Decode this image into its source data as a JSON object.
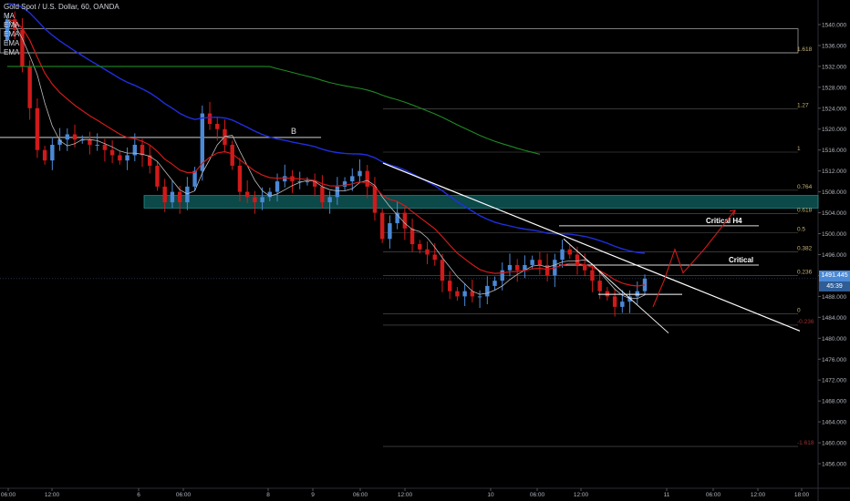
{
  "legend": {
    "symbol": "Gold Spot / U.S. Dollar, 60, OANDA",
    "indicators": [
      "MA",
      "EMA",
      "EMA",
      "EMA",
      "EMA"
    ]
  },
  "current_price": {
    "value": "1491.445",
    "countdown": "45:39",
    "color": "#4b89d6"
  },
  "colors": {
    "up": "#4b89d6",
    "down": "#d11a1a",
    "ma": "#bdbdbd",
    "ema_red": "#d11a1a",
    "ema_blue": "#1f2ee0",
    "ema_green": "#1f8a24",
    "zone": "#0f5c5c",
    "zone_border": "#2bb0b0",
    "fib_label": "#c8b473",
    "arrow": "#d11a1a"
  },
  "chart_data": {
    "type": "line",
    "title": "Gold Spot / U.S. Dollar, 60, OANDA",
    "xlabel": "",
    "ylabel": "",
    "ylim": [
      1452,
      1544
    ],
    "y_ticks": [
      1540,
      1536,
      1532,
      1528,
      1524,
      1520,
      1516,
      1512,
      1508,
      1504,
      1500,
      1496,
      1492,
      1488,
      1484,
      1480,
      1476,
      1472,
      1468,
      1464,
      1460,
      1456
    ],
    "x_ticks": [
      "06:00",
      "12:00",
      "6",
      "06:00",
      "8",
      "9",
      "06:00",
      "12:00",
      "10",
      "06:00",
      "12:00",
      "11",
      "06:00",
      "12:00",
      "18:00"
    ],
    "fib_levels": [
      {
        "label": "1.618",
        "price": 1534.6
      },
      {
        "label": "1.27",
        "price": 1523.9
      },
      {
        "label": "1",
        "price": 1515.6
      },
      {
        "label": "0.764",
        "price": 1508.3
      },
      {
        "label": "0.618",
        "price": 1503.8
      },
      {
        "label": "0.5",
        "price": 1500.2
      },
      {
        "label": "0.382",
        "price": 1496.5
      },
      {
        "label": "0.236",
        "price": 1492.0
      },
      {
        "label": "0",
        "price": 1484.7
      },
      {
        "label": "-0.236",
        "price": 1482.5
      },
      {
        "label": "-1.618",
        "price": 1459.3
      }
    ],
    "annotations": [
      {
        "text": "B",
        "price": 1518.4
      },
      {
        "text": "Critical H4",
        "price": 1501.5
      },
      {
        "text": "Critical",
        "price": 1494.0
      }
    ],
    "close_series": {
      "name": "",
      "values": [
        1541,
        1539,
        1532,
        1524,
        1516,
        1514,
        1517,
        1518,
        1519,
        1518,
        1518,
        1517,
        1517,
        1516,
        1515,
        1514,
        1515,
        1517,
        1515,
        1513,
        1509,
        1506,
        1508,
        1506,
        1509,
        1512,
        1523,
        1521,
        1520,
        1517,
        1513,
        1508,
        1507,
        1506,
        1507,
        1508,
        1510,
        1511,
        1510,
        1510,
        1510,
        1509,
        1506,
        1507,
        1509,
        1510,
        1511,
        1512,
        1509,
        1504,
        1499,
        1502,
        1504,
        1501,
        1498,
        1497,
        1496,
        1495,
        1491,
        1489,
        1488,
        1489,
        1488,
        1488,
        1490,
        1491,
        1493,
        1494,
        1493,
        1494,
        1495,
        1494,
        1492,
        1495,
        1497,
        1496,
        1494,
        1493,
        1491,
        1489,
        1488,
        1486,
        1487,
        1488,
        1489,
        1491.4
      ]
    }
  }
}
